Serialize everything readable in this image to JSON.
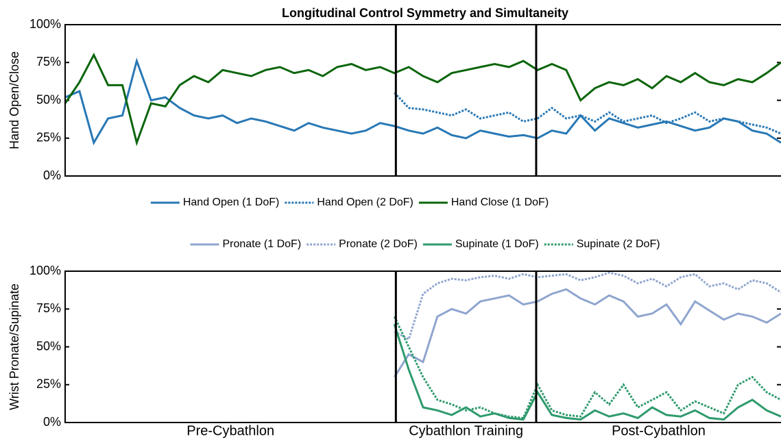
{
  "chart_data": [
    {
      "type": "line",
      "title": "Longitudinal Control Symmetry and Simultaneity",
      "ylabel": "Hand Open/Close",
      "x": [
        0,
        2,
        4,
        6,
        8,
        10,
        12,
        14,
        16,
        18,
        20,
        22,
        24,
        26,
        28,
        30,
        32,
        34,
        36,
        38,
        40,
        42,
        44,
        46,
        48,
        50,
        52,
        54,
        56,
        58,
        60,
        62,
        64,
        66,
        68,
        70,
        72,
        74,
        76,
        78,
        80,
        82,
        84,
        86,
        88,
        90,
        92,
        94,
        96,
        98,
        100
      ],
      "xlim": [
        0,
        100
      ],
      "ylim": [
        0,
        100
      ],
      "yticks": [
        {
          "value": 0,
          "label": "0%"
        },
        {
          "value": 25,
          "label": "25%"
        },
        {
          "value": 50,
          "label": "50%"
        },
        {
          "value": 75,
          "label": "75%"
        },
        {
          "value": 100,
          "label": "100%"
        }
      ],
      "boundaries": [
        46.2,
        65.8
      ],
      "series": [
        {
          "name": "Hand Open (1 DoF)",
          "color": "#2878b5",
          "dash": false,
          "values": [
            52,
            56,
            22,
            38,
            40,
            76,
            50,
            52,
            45,
            40,
            38,
            40,
            35,
            38,
            36,
            33,
            30,
            35,
            32,
            30,
            28,
            30,
            35,
            33,
            30,
            28,
            32,
            27,
            25,
            30,
            28,
            26,
            27,
            25,
            30,
            28,
            40,
            30,
            38,
            35,
            32,
            34,
            36,
            33,
            30,
            32,
            38,
            36,
            30,
            28,
            22
          ]
        },
        {
          "name": "Hand Open (2 DoF)",
          "color": "#2878b5",
          "dash": true,
          "values": [
            null,
            null,
            null,
            null,
            null,
            null,
            null,
            null,
            null,
            null,
            null,
            null,
            null,
            null,
            null,
            null,
            null,
            null,
            null,
            null,
            null,
            null,
            null,
            55,
            45,
            44,
            42,
            40,
            44,
            38,
            40,
            42,
            36,
            38,
            45,
            38,
            40,
            36,
            42,
            36,
            38,
            40,
            35,
            38,
            42,
            36,
            38,
            36,
            34,
            32,
            28
          ]
        },
        {
          "name": "Hand Close (1 DoF)",
          "color": "#0b650b",
          "dash": false,
          "values": [
            48,
            62,
            80,
            60,
            60,
            22,
            48,
            46,
            60,
            66,
            62,
            70,
            68,
            66,
            70,
            72,
            68,
            70,
            66,
            72,
            74,
            70,
            72,
            68,
            72,
            66,
            62,
            68,
            70,
            72,
            74,
            72,
            76,
            70,
            74,
            70,
            50,
            58,
            62,
            60,
            64,
            58,
            66,
            62,
            68,
            62,
            60,
            64,
            62,
            68,
            75
          ]
        }
      ]
    },
    {
      "type": "line",
      "ylabel": "Wrist Pronate/Supinate",
      "x": [
        0,
        2,
        4,
        6,
        8,
        10,
        12,
        14,
        16,
        18,
        20,
        22,
        24,
        26,
        28,
        30,
        32,
        34,
        36,
        38,
        40,
        42,
        44,
        46,
        48,
        50,
        52,
        54,
        56,
        58,
        60,
        62,
        64,
        66,
        68,
        70,
        72,
        74,
        76,
        78,
        80,
        82,
        84,
        86,
        88,
        90,
        92,
        94,
        96,
        98,
        100
      ],
      "xlim": [
        0,
        100
      ],
      "ylim": [
        0,
        100
      ],
      "yticks": [
        {
          "value": 0,
          "label": "0%"
        },
        {
          "value": 25,
          "label": "25%"
        },
        {
          "value": 50,
          "label": "50%"
        },
        {
          "value": 75,
          "label": "75%"
        },
        {
          "value": 100,
          "label": "100%"
        }
      ],
      "boundaries": [
        46.2,
        65.8
      ],
      "phase_labels": [
        "Pre-Cybathlon",
        "Cybathlon Training",
        "Post-Cybathlon"
      ],
      "series": [
        {
          "name": "Pronate (1 DoF)",
          "color": "#8fa5cf",
          "dash": false,
          "values": [
            null,
            null,
            null,
            null,
            null,
            null,
            null,
            null,
            null,
            null,
            null,
            null,
            null,
            null,
            null,
            null,
            null,
            null,
            null,
            null,
            null,
            null,
            null,
            30,
            45,
            40,
            70,
            75,
            72,
            80,
            82,
            84,
            78,
            80,
            85,
            88,
            82,
            78,
            84,
            80,
            70,
            72,
            78,
            65,
            80,
            74,
            68,
            72,
            70,
            66,
            72
          ]
        },
        {
          "name": "Pronate (2 DoF)",
          "color": "#8fa5cf",
          "dash": true,
          "values": [
            null,
            null,
            null,
            null,
            null,
            null,
            null,
            null,
            null,
            null,
            null,
            null,
            null,
            null,
            null,
            null,
            null,
            null,
            null,
            null,
            null,
            null,
            null,
            60,
            55,
            85,
            92,
            95,
            94,
            96,
            97,
            95,
            98,
            96,
            97,
            98,
            94,
            96,
            99,
            97,
            92,
            95,
            90,
            96,
            98,
            90,
            92,
            88,
            94,
            92,
            86
          ]
        },
        {
          "name": "Supinate (1 DoF)",
          "color": "#2e9a6c",
          "dash": false,
          "values": [
            null,
            null,
            null,
            null,
            null,
            null,
            null,
            null,
            null,
            null,
            null,
            null,
            null,
            null,
            null,
            null,
            null,
            null,
            null,
            null,
            null,
            null,
            null,
            65,
            35,
            10,
            8,
            5,
            10,
            4,
            6,
            3,
            2,
            20,
            5,
            3,
            2,
            8,
            4,
            6,
            3,
            10,
            5,
            4,
            8,
            3,
            2,
            10,
            15,
            8,
            4
          ]
        },
        {
          "name": "Supinate (2 DoF)",
          "color": "#2e9a6c",
          "dash": true,
          "values": [
            null,
            null,
            null,
            null,
            null,
            null,
            null,
            null,
            null,
            null,
            null,
            null,
            null,
            null,
            null,
            null,
            null,
            null,
            null,
            null,
            null,
            null,
            null,
            70,
            50,
            30,
            15,
            12,
            8,
            10,
            6,
            4,
            3,
            25,
            8,
            5,
            4,
            20,
            12,
            25,
            10,
            15,
            20,
            8,
            14,
            10,
            6,
            25,
            30,
            20,
            15
          ]
        }
      ]
    }
  ]
}
